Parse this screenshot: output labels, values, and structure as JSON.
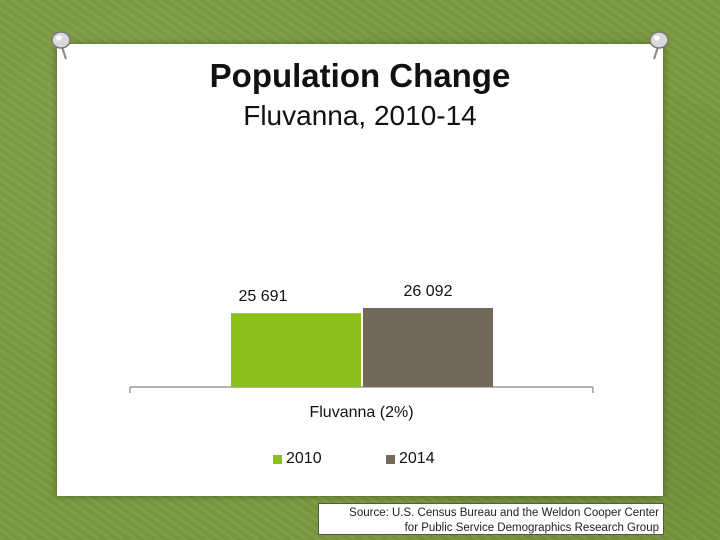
{
  "colors": {
    "background": "#7a9a3e",
    "slide": "#ffffff",
    "bar_2010": "#8dc11a",
    "bar_2014": "#73695a",
    "axis": "#9a9a9a"
  },
  "chart_data": {
    "type": "bar",
    "title": "Population Change",
    "subtitle": "Fluvanna, 2010-14",
    "categories": [
      "Fluvanna (2%)"
    ],
    "series": [
      {
        "name": "2010",
        "values": [
          25691
        ],
        "label": "25 691",
        "color": "#8dc11a"
      },
      {
        "name": "2014",
        "values": [
          26092
        ],
        "label": "26 092",
        "color": "#73695a"
      }
    ],
    "ylim": [
      20000,
      27000
    ],
    "grid": false,
    "legend": "bottom",
    "xlabel": "",
    "ylabel": ""
  },
  "source": {
    "line1": "Source: U.S. Census Bureau and the Weldon Cooper Center",
    "line2": "for Public Service Demographics Research Group"
  }
}
